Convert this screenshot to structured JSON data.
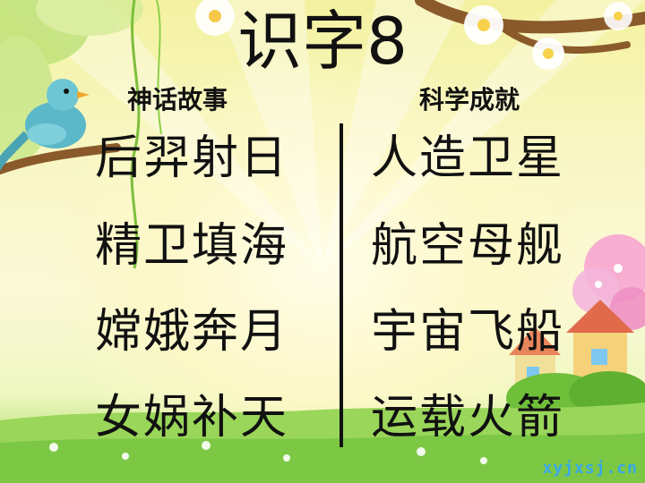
{
  "slide": {
    "title": "识字8",
    "left_column": {
      "heading": "神话故事",
      "items": [
        "后羿射日",
        "精卫填海",
        "嫦娥奔月",
        "女娲补天"
      ]
    },
    "right_column": {
      "heading": "科学成就",
      "items": [
        "人造卫星",
        "航空母舰",
        "宇宙飞船",
        "运载火箭"
      ]
    },
    "watermark": "xyjxsj.cn"
  },
  "colors": {
    "text": "#111111",
    "background_top": "#f4f2a0",
    "grass": "#7fcf4c",
    "bird": "#5bb8c8",
    "watermark": "#39a8e8"
  },
  "icons": [
    "bird-icon",
    "flower-icon",
    "house-icon",
    "leaf-icon"
  ]
}
